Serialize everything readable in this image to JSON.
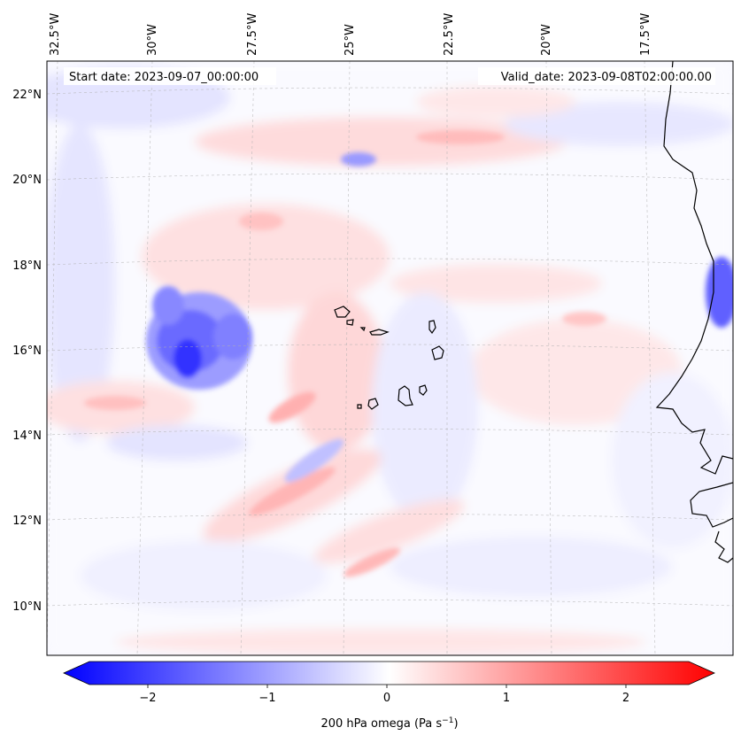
{
  "map": {
    "start_label": "Start date: 2023-09-07_00:00:00",
    "valid_label": "Valid_date: 2023-09-08T02:00:00.00",
    "lon_ticks": [
      "32.5°W",
      "30°W",
      "27.5°W",
      "25°W",
      "22.5°W",
      "20°W",
      "17.5°W"
    ],
    "lat_ticks": [
      "22°N",
      "20°N",
      "18°N",
      "16°N",
      "14°N",
      "12°N",
      "10°N"
    ],
    "coastline_color": "#000000",
    "gridline_color": "#b0b0b0"
  },
  "colorbar": {
    "ticks": [
      "−2",
      "−1",
      "0",
      "1",
      "2"
    ],
    "min": -2.7,
    "max": 2.7,
    "tick_values": [
      -2,
      -1,
      0,
      1,
      2
    ],
    "label_prefix": "200 hPa omega (Pa s",
    "label_sup": "−1",
    "label_suffix": ")",
    "colors": {
      "negative": "#0000ff",
      "zero": "#ffffff",
      "positive": "#ff0000"
    }
  }
}
